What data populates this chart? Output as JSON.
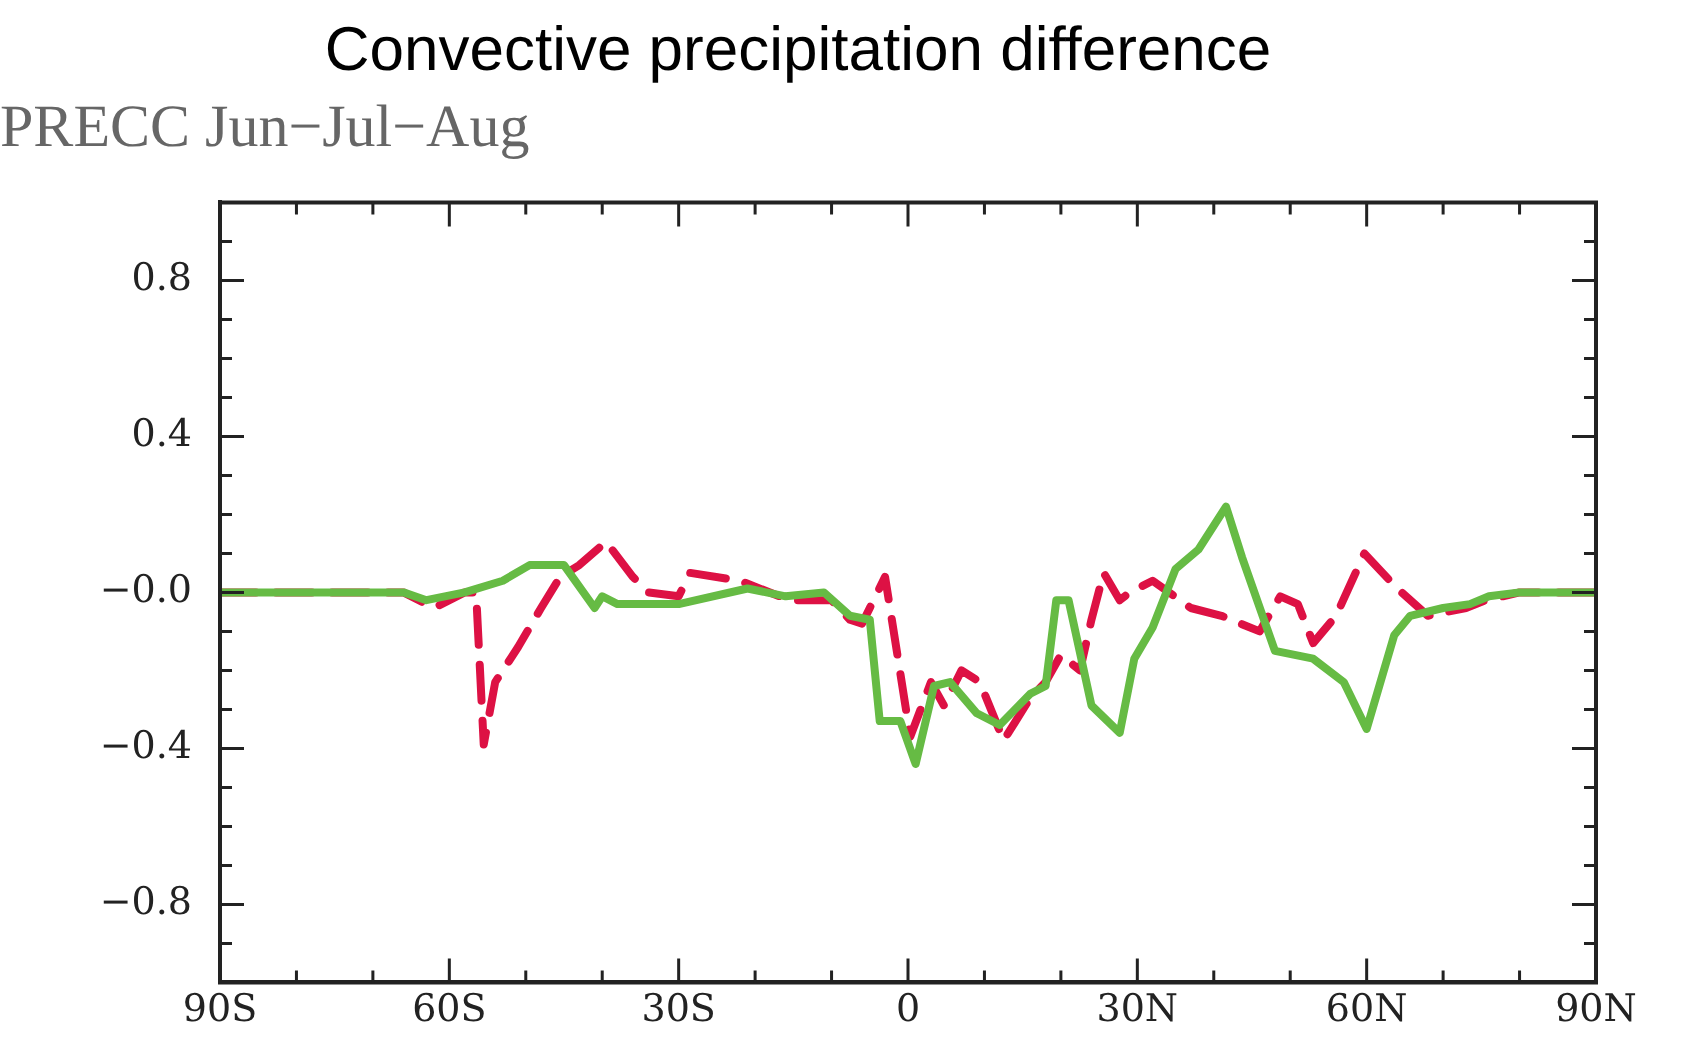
{
  "chart_data": {
    "type": "line",
    "title": "Convective precipitation difference",
    "subtitle": "PRECC Jun−Jul−Aug",
    "series": [
      {
        "color": "#66bb44",
        "line_style": "solid",
        "x": [
          -90,
          -66,
          -63,
          -58,
          -53,
          -49.5,
          -45,
          -41,
          -40,
          -38,
          -30,
          -21,
          -16,
          -11,
          -7.6,
          -5,
          -3.7,
          -1,
          1,
          3.4,
          5.5,
          9,
          12,
          16,
          18,
          19.4,
          21,
          24,
          27.7,
          29.6,
          32,
          35,
          38,
          41.6,
          43.7,
          48,
          53,
          57,
          60,
          63.6,
          65.7,
          70,
          73.5,
          76,
          80,
          90
        ],
        "values": [
          0,
          0,
          -0.02,
          0,
          0.03,
          0.07,
          0.07,
          -0.04,
          -0.01,
          -0.03,
          -0.03,
          0.01,
          -0.01,
          0,
          -0.06,
          -0.07,
          -0.33,
          -0.33,
          -0.44,
          -0.24,
          -0.23,
          -0.31,
          -0.34,
          -0.26,
          -0.24,
          -0.02,
          -0.02,
          -0.29,
          -0.36,
          -0.17,
          -0.09,
          0.06,
          0.11,
          0.22,
          0.09,
          -0.15,
          -0.17,
          -0.23,
          -0.35,
          -0.11,
          -0.06,
          -0.04,
          -0.03,
          -0.01,
          0,
          0
        ]
      },
      {
        "color": "#dd1144",
        "line_style": "dashed",
        "x": [
          -90,
          -66,
          -62,
          -58,
          -56.5,
          -55.5,
          -54,
          -51,
          -48,
          -45.5,
          -43,
          -39.5,
          -36,
          -34,
          -30,
          -28.5,
          -22,
          -15.5,
          -10,
          -7.6,
          -6,
          -3,
          0.3,
          3,
          4.7,
          7,
          9.4,
          12.5,
          16,
          18,
          20,
          22.5,
          24,
          25.6,
          27.7,
          29,
          32,
          37,
          41,
          46,
          48.7,
          51,
          53,
          56,
          59.7,
          64,
          68,
          73,
          75.6,
          80,
          90
        ],
        "values": [
          0,
          0,
          -0.04,
          0,
          0,
          -0.39,
          -0.23,
          -0.14,
          -0.04,
          0.04,
          0.07,
          0.13,
          0.04,
          0,
          -0.01,
          0.05,
          0.03,
          -0.02,
          -0.02,
          -0.07,
          -0.08,
          0.04,
          -0.37,
          -0.23,
          -0.29,
          -0.2,
          -0.23,
          -0.38,
          -0.27,
          -0.23,
          -0.16,
          -0.2,
          -0.07,
          0.05,
          -0.02,
          0,
          0.03,
          -0.04,
          -0.06,
          -0.1,
          -0.01,
          -0.03,
          -0.13,
          -0.06,
          0.1,
          0.01,
          -0.06,
          -0.04,
          -0.02,
          0,
          0
        ]
      }
    ],
    "xlim": [
      -90,
      90
    ],
    "xticks": [
      {
        "value": -90,
        "label": "90S"
      },
      {
        "value": -80,
        "label": null
      },
      {
        "value": -70,
        "label": null
      },
      {
        "value": -60,
        "label": "60S"
      },
      {
        "value": -50,
        "label": null
      },
      {
        "value": -40,
        "label": null
      },
      {
        "value": -30,
        "label": "30S"
      },
      {
        "value": -20,
        "label": null
      },
      {
        "value": -10,
        "label": null
      },
      0,
      {
        "value": 10,
        "label": null
      },
      {
        "value": 20,
        "label": null
      },
      {
        "value": 30,
        "label": "30N"
      },
      {
        "value": 40,
        "label": null
      },
      {
        "value": 50,
        "label": null
      },
      {
        "value": 60,
        "label": "60N"
      },
      {
        "value": 70,
        "label": null
      },
      {
        "value": 80,
        "label": null
      },
      {
        "value": 90,
        "label": "90N"
      }
    ],
    "ylim": [
      -1,
      1
    ],
    "yticks": [
      {
        "value": -1,
        "label": null
      },
      {
        "value": -0.9,
        "label": null
      },
      {
        "value": -0.8,
        "label": "−0.8"
      },
      {
        "value": -0.7,
        "label": null
      },
      {
        "value": -0.6,
        "label": null
      },
      {
        "value": -0.5,
        "label": null
      },
      {
        "value": -0.4,
        "label": "−0.4"
      },
      {
        "value": -0.3,
        "label": null
      },
      {
        "value": -0.2,
        "label": null
      },
      {
        "value": -0.1,
        "label": null
      },
      {
        "value": 0,
        "label": "−0.0"
      },
      {
        "value": 0.1,
        "label": null
      },
      {
        "value": 0.2,
        "label": null
      },
      {
        "value": 0.3,
        "label": null
      },
      {
        "value": 0.4,
        "label": "0.4"
      },
      {
        "value": 0.5,
        "label": null
      },
      {
        "value": 0.6,
        "label": null
      },
      {
        "value": 0.7,
        "label": null
      },
      {
        "value": 0.8,
        "label": "0.8"
      },
      {
        "value": 0.9,
        "label": null
      },
      {
        "value": 1,
        "label": null
      }
    ],
    "grid": false,
    "legend": false
  }
}
